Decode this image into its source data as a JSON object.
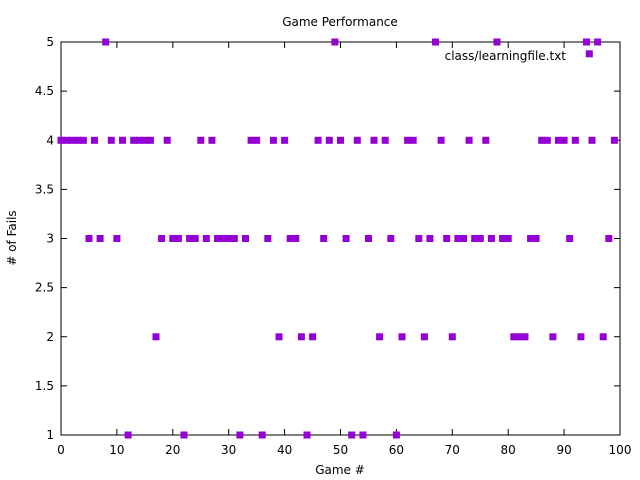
{
  "chart_data": {
    "type": "scatter",
    "title": "Game Performance",
    "xlabel": "Game #",
    "ylabel": "# of Fails",
    "xlim": [
      0,
      100
    ],
    "ylim": [
      1,
      5
    ],
    "x_ticks": [
      "0",
      "10",
      "20",
      "30",
      "40",
      "50",
      "60",
      "70",
      "80",
      "90",
      "100"
    ],
    "x_tick_values": [
      0,
      10,
      20,
      30,
      40,
      50,
      60,
      70,
      80,
      90,
      100
    ],
    "y_ticks": [
      "1",
      "1.5",
      "2",
      "2.5",
      "3",
      "3.5",
      "4",
      "4.5",
      "5"
    ],
    "y_tick_values": [
      1,
      1.5,
      2,
      2.5,
      3,
      3.5,
      4,
      4.5,
      5
    ],
    "grid": false,
    "legend_position": "top-right",
    "series": [
      {
        "name": "class/learningfile.txt",
        "color": "#9400d3",
        "marker": "square",
        "x": [
          0,
          1,
          2,
          3,
          4,
          5,
          6,
          7,
          8,
          9,
          10,
          11,
          12,
          13,
          14,
          15,
          16,
          17,
          18,
          19,
          20,
          21,
          22,
          23,
          24,
          25,
          26,
          27,
          28,
          29,
          30,
          31,
          32,
          33,
          34,
          35,
          36,
          37,
          38,
          39,
          40,
          41,
          42,
          43,
          44,
          45,
          46,
          47,
          48,
          49,
          50,
          51,
          52,
          53,
          54,
          55,
          56,
          57,
          58,
          59,
          60,
          61,
          62,
          63,
          64,
          65,
          66,
          67,
          68,
          69,
          70,
          71,
          72,
          73,
          74,
          75,
          76,
          77,
          78,
          79,
          80,
          81,
          82,
          83,
          84,
          85,
          86,
          87,
          88,
          89,
          90,
          91,
          92,
          93,
          94,
          94.5,
          95,
          96,
          97,
          98,
          99
        ],
        "y": [
          4,
          4,
          4,
          4,
          4,
          3,
          4,
          3,
          5,
          4,
          3,
          4,
          1,
          4,
          4,
          4,
          4,
          2,
          3,
          4,
          3,
          3,
          1,
          3,
          3,
          4,
          3,
          4,
          3,
          3,
          3,
          3,
          1,
          3,
          4,
          4,
          1,
          3,
          4,
          2,
          4,
          3,
          3,
          2,
          1,
          2,
          4,
          3,
          4,
          5,
          4,
          3,
          1,
          4,
          1,
          3,
          4,
          2,
          4,
          3,
          1,
          2,
          4,
          4,
          3,
          2,
          3,
          5,
          4,
          3,
          2,
          3,
          3,
          4,
          3,
          3,
          4,
          3,
          5,
          3,
          3,
          2,
          2,
          2,
          3,
          3,
          4,
          4,
          2,
          4,
          4,
          3,
          4,
          2,
          5,
          4.88,
          4,
          5,
          2,
          3,
          4
        ]
      }
    ]
  }
}
